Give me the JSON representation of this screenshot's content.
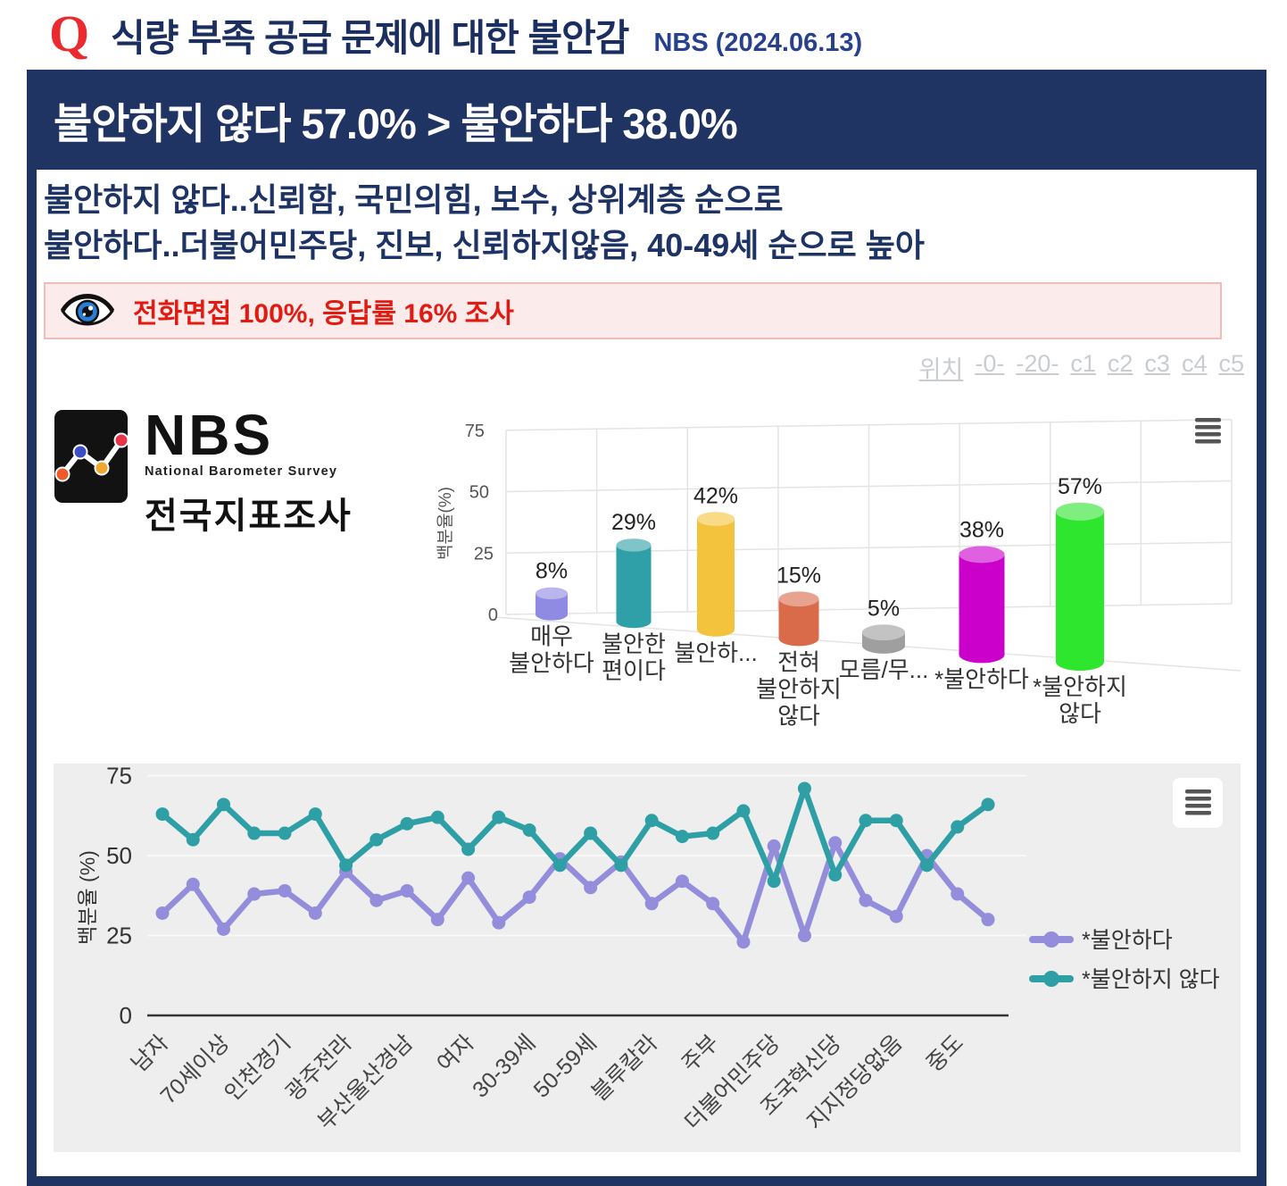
{
  "header": {
    "q": "Q",
    "title": "식량 부족 공급 문제에 대한 불안감",
    "source": "NBS (2024.06.13)"
  },
  "banner": {
    "text": "불안하지 않다 57.0% > 불안하다 38.0%"
  },
  "subtitle": {
    "line1": "불안하지 않다..신뢰함, 국민의힘, 보수, 상위계층 순으로",
    "line2": "불안하다..더불어민주당, 진보, 신뢰하지않음, 40-49세 순으로 높아"
  },
  "notice": {
    "text": "전화면접 100%, 응답률 16% 조사"
  },
  "nav_links": [
    "위치",
    "-0-",
    "-20-",
    "c1",
    "c2",
    "c3",
    "c4",
    "c5"
  ],
  "logo": {
    "nbs": "NBS",
    "subtitle_en": "National Barometer Survey",
    "subtitle_ko": "전국지표조사"
  },
  "colors": {
    "navy": "#203464",
    "accent_red": "#e11b12",
    "line_anxious": "#938ddb",
    "line_not_anxious": "#2f9fa6"
  },
  "chart_data": [
    {
      "type": "bar",
      "style": "3d-cylinder",
      "title": "",
      "xlabel": "",
      "ylabel": "백분율(%)",
      "ylim": [
        0,
        75
      ],
      "yticks": [
        0,
        25,
        50,
        75
      ],
      "grid": true,
      "categories": [
        "매우 불안하다",
        "불안한 편이다",
        "불안하...",
        "전혀 불안하지 않다",
        "모름/무...",
        "*불안하다",
        "*불안하지 않다"
      ],
      "values": [
        8,
        29,
        42,
        15,
        5,
        38,
        57
      ],
      "data_labels": [
        "8%",
        "29%",
        "42%",
        "15%",
        "5%",
        "38%",
        "57%"
      ],
      "bar_colors": [
        "#8f8ae2",
        "#2fa0a8",
        "#f4c33e",
        "#d96b4b",
        "#9f9f9f",
        "#cb00cb",
        "#2fe62f"
      ]
    },
    {
      "type": "line",
      "title": "",
      "xlabel": "",
      "ylabel": "백분율 (%)",
      "ylim": [
        0,
        75
      ],
      "yticks": [
        0,
        25,
        50,
        75
      ],
      "grid": true,
      "legend_position": "right",
      "x_labels": [
        "남자",
        "70세이상",
        "인천경기",
        "광주전라",
        "부산울산경남",
        "여자",
        "30-39세",
        "50-59세",
        "블루칼라",
        "주부",
        "더불어민주당",
        "조국혁신당",
        "지지정당없음",
        "중도"
      ],
      "label_every": 2,
      "n_points": 28,
      "series": [
        {
          "name": "*불안하다",
          "color": "#938ddb",
          "values": [
            32,
            41,
            27,
            38,
            39,
            32,
            45,
            36,
            39,
            30,
            43,
            29,
            37,
            49,
            40,
            48,
            35,
            42,
            35,
            23,
            53,
            25,
            54,
            36,
            31,
            50,
            38,
            30
          ]
        },
        {
          "name": "*불안하지 않다",
          "color": "#2f9fa6",
          "values": [
            63,
            55,
            66,
            57,
            57,
            63,
            47,
            55,
            60,
            62,
            52,
            62,
            58,
            47,
            57,
            47,
            61,
            56,
            57,
            64,
            42,
            71,
            44,
            61,
            61,
            47,
            59,
            66
          ]
        }
      ]
    }
  ]
}
